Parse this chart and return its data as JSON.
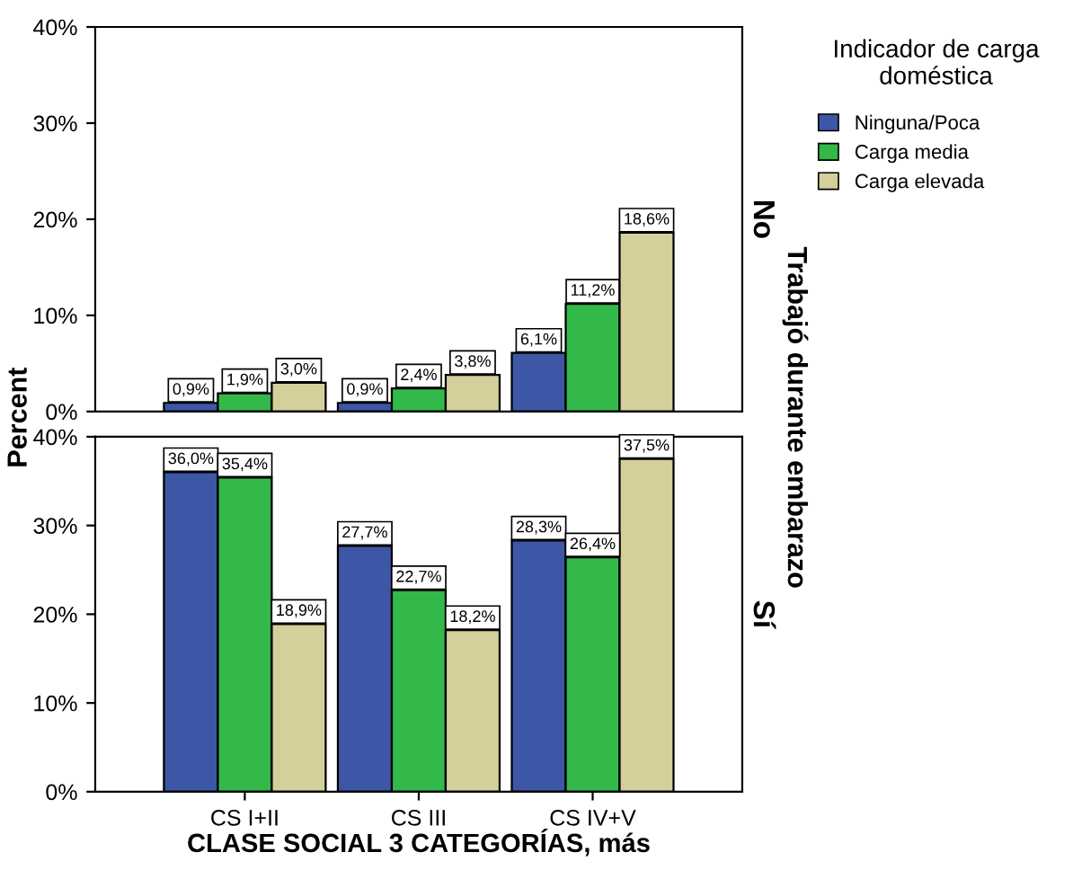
{
  "chart_data": [
    {
      "type": "bar",
      "title": "No",
      "y2label": "Trabajó durante embarazo",
      "ylabel": "Percent",
      "legend_title": "Indicador de carga doméstica",
      "legend": "top right",
      "tick_labels": "y",
      "grid": false,
      "ylim": [
        0,
        40
      ],
      "yticks": [
        {
          "value": 0,
          "label": "0%"
        },
        {
          "value": 10,
          "label": "10%"
        },
        {
          "value": 20,
          "label": "20%"
        },
        {
          "value": 30,
          "label": "30%"
        },
        {
          "value": 40,
          "label": "40%"
        }
      ],
      "series": [
        {
          "name": "Ninguna/Poca",
          "color": "#3e56a6",
          "values": [
            0.9,
            0.9,
            6.1
          ],
          "value_labels": [
            "0,9%",
            "0,9%",
            "6,1%"
          ]
        },
        {
          "name": "Carga media",
          "color": "#33b84a",
          "values": [
            1.9,
            2.4,
            11.2
          ],
          "value_labels": [
            "1,9%",
            "2,4%",
            "11,2%"
          ]
        },
        {
          "name": "Carga elevada",
          "color": "#d4cf9b",
          "values": [
            3.0,
            3.8,
            18.6
          ],
          "value_labels": [
            "3,0%",
            "3,8%",
            "18,6%"
          ]
        }
      ]
    },
    {
      "type": "bar",
      "title": "Sí",
      "xlabel": "CLASE SOCIAL 3 CATEGORÍAS, más",
      "grid": false,
      "categories": [
        "CS I+II",
        "CS III",
        "CS IV+V"
      ],
      "ylim": [
        0,
        40
      ],
      "yticks": [
        {
          "value": 0,
          "label": "0%"
        },
        {
          "value": 10,
          "label": "10%"
        },
        {
          "value": 20,
          "label": "20%"
        },
        {
          "value": 30,
          "label": "30%"
        },
        {
          "value": 40,
          "label": "40%"
        }
      ],
      "series": [
        {
          "color": "#3e56a6",
          "values": [
            36.0,
            27.7,
            28.3
          ],
          "value_labels": [
            "36,0%",
            "27,7%",
            "28,3%"
          ]
        },
        {
          "color": "#33b84a",
          "values": [
            35.4,
            22.7,
            26.4
          ],
          "value_labels": [
            "35,4%",
            "22,7%",
            "26,4%"
          ]
        },
        {
          "color": "#d4cf9b",
          "values": [
            18.9,
            18.2,
            37.5
          ],
          "value_labels": [
            "18,9%",
            "18,2%",
            "37,5%"
          ]
        }
      ]
    }
  ]
}
